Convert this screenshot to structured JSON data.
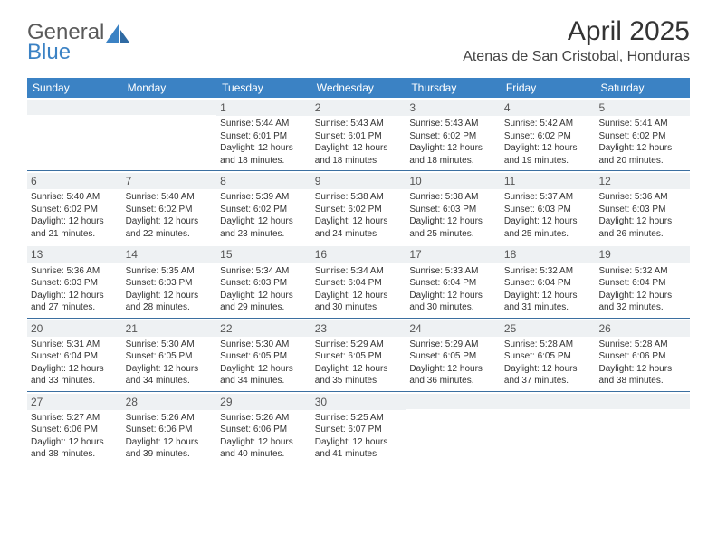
{
  "logo": {
    "line1": "General",
    "line2": "Blue"
  },
  "title": "April 2025",
  "location": "Atenas de San Cristobal, Honduras",
  "colors": {
    "header_bg": "#3b82c4",
    "band_bg": "#eef1f3",
    "rule": "#3b6fa0",
    "text": "#333333"
  },
  "day_labels": [
    "Sunday",
    "Monday",
    "Tuesday",
    "Wednesday",
    "Thursday",
    "Friday",
    "Saturday"
  ],
  "weeks": [
    [
      {
        "n": "",
        "sr": "",
        "ss": "",
        "dl": ""
      },
      {
        "n": "",
        "sr": "",
        "ss": "",
        "dl": ""
      },
      {
        "n": "1",
        "sr": "Sunrise: 5:44 AM",
        "ss": "Sunset: 6:01 PM",
        "dl": "Daylight: 12 hours and 18 minutes."
      },
      {
        "n": "2",
        "sr": "Sunrise: 5:43 AM",
        "ss": "Sunset: 6:01 PM",
        "dl": "Daylight: 12 hours and 18 minutes."
      },
      {
        "n": "3",
        "sr": "Sunrise: 5:43 AM",
        "ss": "Sunset: 6:02 PM",
        "dl": "Daylight: 12 hours and 18 minutes."
      },
      {
        "n": "4",
        "sr": "Sunrise: 5:42 AM",
        "ss": "Sunset: 6:02 PM",
        "dl": "Daylight: 12 hours and 19 minutes."
      },
      {
        "n": "5",
        "sr": "Sunrise: 5:41 AM",
        "ss": "Sunset: 6:02 PM",
        "dl": "Daylight: 12 hours and 20 minutes."
      }
    ],
    [
      {
        "n": "6",
        "sr": "Sunrise: 5:40 AM",
        "ss": "Sunset: 6:02 PM",
        "dl": "Daylight: 12 hours and 21 minutes."
      },
      {
        "n": "7",
        "sr": "Sunrise: 5:40 AM",
        "ss": "Sunset: 6:02 PM",
        "dl": "Daylight: 12 hours and 22 minutes."
      },
      {
        "n": "8",
        "sr": "Sunrise: 5:39 AM",
        "ss": "Sunset: 6:02 PM",
        "dl": "Daylight: 12 hours and 23 minutes."
      },
      {
        "n": "9",
        "sr": "Sunrise: 5:38 AM",
        "ss": "Sunset: 6:02 PM",
        "dl": "Daylight: 12 hours and 24 minutes."
      },
      {
        "n": "10",
        "sr": "Sunrise: 5:38 AM",
        "ss": "Sunset: 6:03 PM",
        "dl": "Daylight: 12 hours and 25 minutes."
      },
      {
        "n": "11",
        "sr": "Sunrise: 5:37 AM",
        "ss": "Sunset: 6:03 PM",
        "dl": "Daylight: 12 hours and 25 minutes."
      },
      {
        "n": "12",
        "sr": "Sunrise: 5:36 AM",
        "ss": "Sunset: 6:03 PM",
        "dl": "Daylight: 12 hours and 26 minutes."
      }
    ],
    [
      {
        "n": "13",
        "sr": "Sunrise: 5:36 AM",
        "ss": "Sunset: 6:03 PM",
        "dl": "Daylight: 12 hours and 27 minutes."
      },
      {
        "n": "14",
        "sr": "Sunrise: 5:35 AM",
        "ss": "Sunset: 6:03 PM",
        "dl": "Daylight: 12 hours and 28 minutes."
      },
      {
        "n": "15",
        "sr": "Sunrise: 5:34 AM",
        "ss": "Sunset: 6:03 PM",
        "dl": "Daylight: 12 hours and 29 minutes."
      },
      {
        "n": "16",
        "sr": "Sunrise: 5:34 AM",
        "ss": "Sunset: 6:04 PM",
        "dl": "Daylight: 12 hours and 30 minutes."
      },
      {
        "n": "17",
        "sr": "Sunrise: 5:33 AM",
        "ss": "Sunset: 6:04 PM",
        "dl": "Daylight: 12 hours and 30 minutes."
      },
      {
        "n": "18",
        "sr": "Sunrise: 5:32 AM",
        "ss": "Sunset: 6:04 PM",
        "dl": "Daylight: 12 hours and 31 minutes."
      },
      {
        "n": "19",
        "sr": "Sunrise: 5:32 AM",
        "ss": "Sunset: 6:04 PM",
        "dl": "Daylight: 12 hours and 32 minutes."
      }
    ],
    [
      {
        "n": "20",
        "sr": "Sunrise: 5:31 AM",
        "ss": "Sunset: 6:04 PM",
        "dl": "Daylight: 12 hours and 33 minutes."
      },
      {
        "n": "21",
        "sr": "Sunrise: 5:30 AM",
        "ss": "Sunset: 6:05 PM",
        "dl": "Daylight: 12 hours and 34 minutes."
      },
      {
        "n": "22",
        "sr": "Sunrise: 5:30 AM",
        "ss": "Sunset: 6:05 PM",
        "dl": "Daylight: 12 hours and 34 minutes."
      },
      {
        "n": "23",
        "sr": "Sunrise: 5:29 AM",
        "ss": "Sunset: 6:05 PM",
        "dl": "Daylight: 12 hours and 35 minutes."
      },
      {
        "n": "24",
        "sr": "Sunrise: 5:29 AM",
        "ss": "Sunset: 6:05 PM",
        "dl": "Daylight: 12 hours and 36 minutes."
      },
      {
        "n": "25",
        "sr": "Sunrise: 5:28 AM",
        "ss": "Sunset: 6:05 PM",
        "dl": "Daylight: 12 hours and 37 minutes."
      },
      {
        "n": "26",
        "sr": "Sunrise: 5:28 AM",
        "ss": "Sunset: 6:06 PM",
        "dl": "Daylight: 12 hours and 38 minutes."
      }
    ],
    [
      {
        "n": "27",
        "sr": "Sunrise: 5:27 AM",
        "ss": "Sunset: 6:06 PM",
        "dl": "Daylight: 12 hours and 38 minutes."
      },
      {
        "n": "28",
        "sr": "Sunrise: 5:26 AM",
        "ss": "Sunset: 6:06 PM",
        "dl": "Daylight: 12 hours and 39 minutes."
      },
      {
        "n": "29",
        "sr": "Sunrise: 5:26 AM",
        "ss": "Sunset: 6:06 PM",
        "dl": "Daylight: 12 hours and 40 minutes."
      },
      {
        "n": "30",
        "sr": "Sunrise: 5:25 AM",
        "ss": "Sunset: 6:07 PM",
        "dl": "Daylight: 12 hours and 41 minutes."
      },
      {
        "n": "",
        "sr": "",
        "ss": "",
        "dl": ""
      },
      {
        "n": "",
        "sr": "",
        "ss": "",
        "dl": ""
      },
      {
        "n": "",
        "sr": "",
        "ss": "",
        "dl": ""
      }
    ]
  ]
}
